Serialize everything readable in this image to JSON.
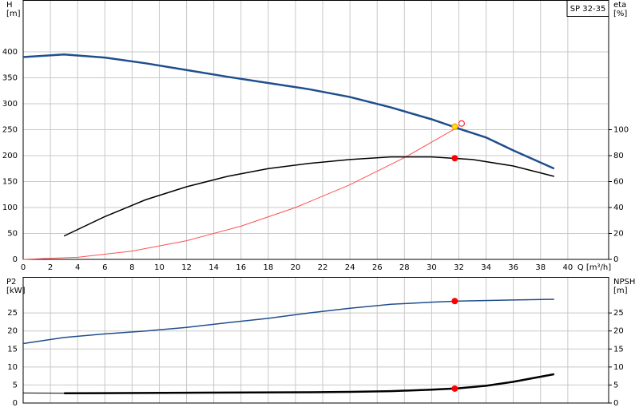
{
  "chart_data": [
    {
      "type": "line",
      "title": "SP 32-35",
      "ylabel": [
        "H",
        "[m]"
      ],
      "y2label": [
        "eta",
        "[%]"
      ],
      "xlabel": "Q [m³/h]",
      "xlim": [
        0,
        43
      ],
      "xticks": [
        0,
        2,
        4,
        6,
        8,
        10,
        12,
        14,
        16,
        18,
        20,
        22,
        24,
        26,
        28,
        30,
        32,
        34,
        36,
        38,
        40
      ],
      "ylim": [
        0,
        500
      ],
      "yticks": [
        0,
        50,
        100,
        150,
        200,
        250,
        300,
        350,
        400
      ],
      "y2lim": [
        0,
        200
      ],
      "y2ticks": [
        0,
        20,
        40,
        60,
        80,
        100
      ],
      "grid": true,
      "show_xticklabels": true,
      "series": [
        {
          "color": "#1f4e8c",
          "style": "line",
          "width": 2.5,
          "x": [
            0,
            3,
            6,
            9,
            12,
            15,
            18,
            21,
            24,
            27,
            30,
            32,
            34,
            36,
            39
          ],
          "values": [
            390,
            395,
            389,
            378,
            365,
            352,
            340,
            328,
            313,
            293,
            270,
            252,
            235,
            210,
            175
          ]
        },
        {
          "color": "#ff5050",
          "style": "line",
          "width": 1,
          "x": [
            0,
            4,
            8,
            12,
            16,
            20,
            24,
            28,
            32
          ],
          "values": [
            0,
            4,
            16,
            36,
            64,
            100,
            144,
            196,
            256
          ]
        },
        {
          "color": "#000000",
          "style": "line",
          "width": 1.5,
          "axis": "y2",
          "x": [
            3,
            6,
            9,
            12,
            15,
            18,
            21,
            24,
            27,
            30,
            33,
            36,
            39
          ],
          "values": [
            18,
            33,
            46,
            56,
            64,
            70,
            74,
            77,
            79,
            79,
            77,
            72,
            64
          ]
        },
        {
          "color": "#ff0000",
          "style": "point",
          "fill": "#ffffff",
          "x": [
            32.2
          ],
          "values": [
            262
          ]
        },
        {
          "color": "#e0a000",
          "style": "point",
          "fill": "#ffe000",
          "x": [
            31.7
          ],
          "values": [
            256
          ]
        },
        {
          "color": "#ff0000",
          "style": "point",
          "fill": "#ff0000",
          "axis": "y2",
          "x": [
            31.7
          ],
          "values": [
            78
          ]
        }
      ]
    },
    {
      "type": "line",
      "ylabel": [
        "P2",
        "[kW]"
      ],
      "y2label": [
        "NPSH",
        "[m]"
      ],
      "xlim": [
        0,
        43
      ],
      "xticks": [
        0,
        2,
        4,
        6,
        8,
        10,
        12,
        14,
        16,
        18,
        20,
        22,
        24,
        26,
        28,
        30,
        32,
        34,
        36,
        38,
        40
      ],
      "ylim": [
        0,
        35
      ],
      "yticks": [
        0,
        5,
        10,
        15,
        20,
        25
      ],
      "y2lim": [
        0,
        35
      ],
      "y2ticks": [
        0,
        5,
        10,
        15,
        20,
        25
      ],
      "grid": true,
      "show_xticklabels": false,
      "series": [
        {
          "color": "#1f4e8c",
          "style": "line",
          "width": 1.5,
          "x": [
            0,
            3,
            6,
            9,
            12,
            15,
            18,
            21,
            24,
            27,
            30,
            32,
            36,
            39
          ],
          "values": [
            16.5,
            18.2,
            19.2,
            20,
            21,
            22.3,
            23.5,
            25,
            26.3,
            27.4,
            28,
            28.3,
            28.6,
            28.8
          ]
        },
        {
          "color": "#000000",
          "style": "line",
          "width": 2.5,
          "axis": "y2",
          "x": [
            3,
            9,
            15,
            21,
            24,
            27,
            30,
            32,
            34,
            36,
            39
          ],
          "values": [
            2.7,
            2.8,
            2.9,
            3,
            3.1,
            3.3,
            3.7,
            4.1,
            4.8,
            5.9,
            8
          ]
        },
        {
          "color": "#000000",
          "style": "line",
          "width": 1,
          "axis": "y2",
          "x": [
            0,
            3
          ],
          "values": [
            2.8,
            2.7
          ]
        },
        {
          "color": "#ff0000",
          "style": "point",
          "fill": "#ff0000",
          "x": [
            31.7
          ],
          "values": [
            28.3
          ]
        },
        {
          "color": "#ff0000",
          "style": "point",
          "fill": "#ff0000",
          "axis": "y2",
          "x": [
            31.7
          ],
          "values": [
            4
          ]
        }
      ]
    }
  ]
}
